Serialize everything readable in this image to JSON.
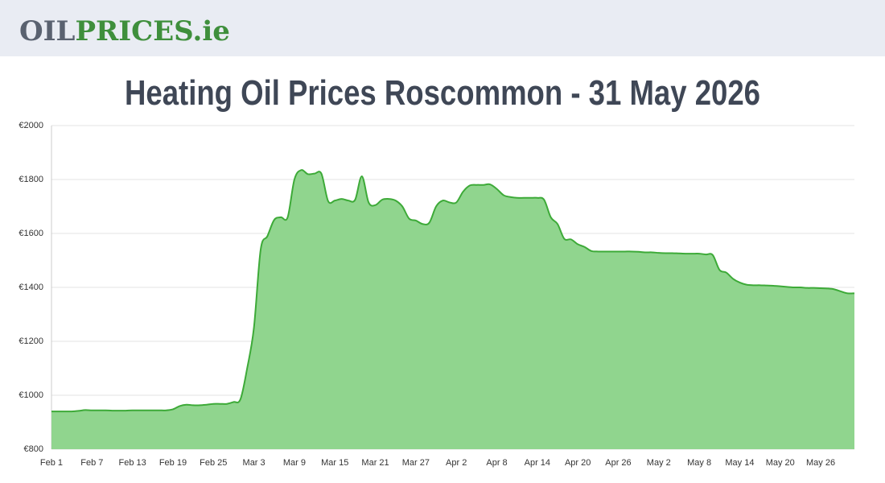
{
  "header": {
    "logo": [
      "OIL",
      "PRICES",
      ".ie"
    ]
  },
  "chart_data": {
    "type": "area",
    "title": "Heating Oil Prices Roscommon - 31 May 2026",
    "categories": [
      "Feb 1",
      null,
      null,
      null,
      null,
      null,
      "Feb 7",
      null,
      null,
      null,
      null,
      null,
      "Feb 13",
      null,
      null,
      null,
      null,
      null,
      "Feb 19",
      null,
      null,
      null,
      null,
      null,
      "Feb 25",
      null,
      null,
      null,
      null,
      null,
      "Mar 3",
      null,
      null,
      null,
      null,
      null,
      "Mar 9",
      null,
      null,
      null,
      null,
      null,
      "Mar 15",
      null,
      null,
      null,
      null,
      null,
      "Mar 21",
      null,
      null,
      null,
      null,
      null,
      "Mar 27",
      null,
      null,
      null,
      null,
      null,
      "Apr 2",
      null,
      null,
      null,
      null,
      null,
      "Apr 8",
      null,
      null,
      null,
      null,
      null,
      "Apr 14",
      null,
      null,
      null,
      null,
      null,
      "Apr 20",
      null,
      null,
      null,
      null,
      null,
      "Apr 26",
      null,
      null,
      null,
      null,
      null,
      "May 2",
      null,
      null,
      null,
      null,
      null,
      "May 8",
      null,
      null,
      null,
      null,
      null,
      "May 14",
      null,
      null,
      null,
      null,
      null,
      "May 20",
      null,
      null,
      null,
      null,
      null,
      "May 26",
      null,
      null,
      null,
      null,
      null
    ],
    "values": [
      940,
      940,
      940,
      940,
      942,
      945,
      944,
      944,
      944,
      943,
      943,
      943,
      944,
      944,
      944,
      944,
      944,
      944,
      948,
      960,
      965,
      963,
      963,
      965,
      968,
      968,
      968,
      975,
      985,
      1100,
      1250,
      1540,
      1590,
      1650,
      1660,
      1660,
      1800,
      1835,
      1820,
      1822,
      1822,
      1720,
      1722,
      1728,
      1722,
      1725,
      1812,
      1715,
      1705,
      1725,
      1728,
      1722,
      1700,
      1655,
      1648,
      1635,
      1640,
      1700,
      1722,
      1715,
      1715,
      1755,
      1778,
      1780,
      1780,
      1782,
      1765,
      1742,
      1735,
      1732,
      1732,
      1732,
      1732,
      1725,
      1660,
      1635,
      1580,
      1578,
      1560,
      1550,
      1535,
      1533,
      1533,
      1533,
      1533,
      1533,
      1533,
      1532,
      1530,
      1530,
      1528,
      1527,
      1527,
      1526,
      1525,
      1525,
      1525,
      1522,
      1520,
      1465,
      1455,
      1432,
      1418,
      1410,
      1408,
      1408,
      1407,
      1406,
      1404,
      1402,
      1400,
      1400,
      1398,
      1398,
      1397,
      1396,
      1393,
      1385,
      1378,
      1378
    ],
    "color": "#3daa38",
    "fill": "#90d58e",
    "ylim": [
      800,
      2000
    ],
    "yticks": [
      {
        "value": 800,
        "label": "€800"
      },
      {
        "value": 1000,
        "label": "€1000"
      },
      {
        "value": 1200,
        "label": "€1200"
      },
      {
        "value": 1400,
        "label": "€1400"
      },
      {
        "value": 1600,
        "label": "€1600"
      },
      {
        "value": 1800,
        "label": "€1800"
      },
      {
        "value": 2000,
        "label": "€2000"
      }
    ],
    "grid": true
  }
}
